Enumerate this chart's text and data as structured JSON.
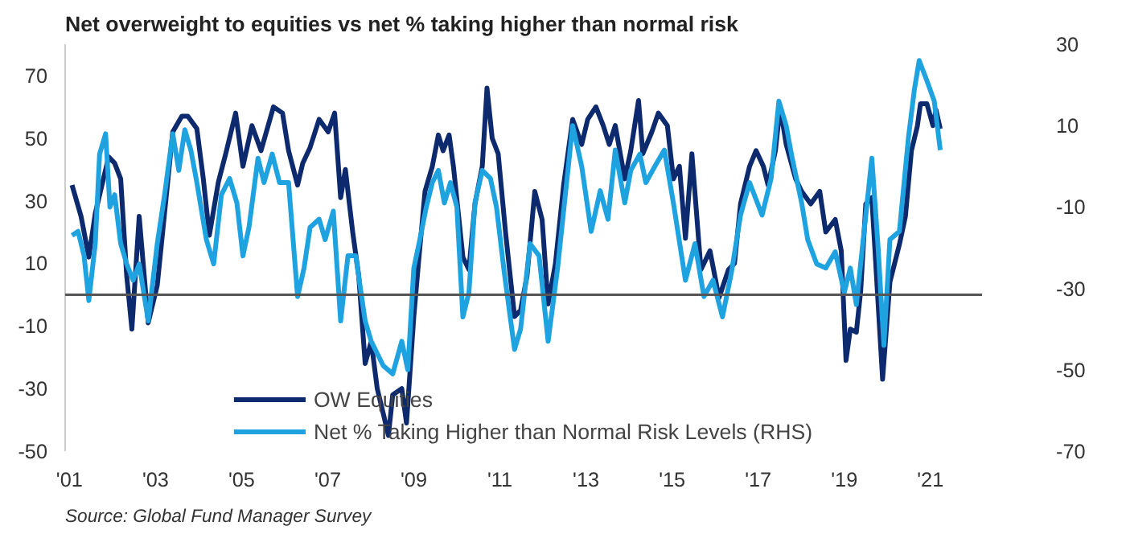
{
  "chart_data": {
    "type": "line",
    "title": "Net overweight to equities vs net % taking higher than normal risk",
    "annotations": [
      "Source: Global Fund Manager Survey"
    ],
    "xlim": [
      2000.9,
      2022.2
    ],
    "xticks": [
      {
        "value": 2001,
        "label": "'01"
      },
      {
        "value": 2003,
        "label": "'03"
      },
      {
        "value": 2005,
        "label": "'05"
      },
      {
        "value": 2007,
        "label": "'07"
      },
      {
        "value": 2009,
        "label": "'09"
      },
      {
        "value": 2011,
        "label": "'11"
      },
      {
        "value": 2013,
        "label": "'13"
      },
      {
        "value": 2015,
        "label": "'15"
      },
      {
        "value": 2017,
        "label": "'17"
      },
      {
        "value": 2019,
        "label": "'19"
      },
      {
        "value": 2021,
        "label": "'21"
      }
    ],
    "ylim": [
      -50,
      80
    ],
    "yticks": [
      -50,
      -30,
      -10,
      10,
      30,
      50,
      70
    ],
    "y2lim": [
      -70,
      30
    ],
    "y2ticks": [
      -70,
      -50,
      -30,
      -10,
      10,
      30
    ],
    "grid": false,
    "legend": "bottom",
    "line_style": "solid",
    "marker": "none",
    "ref_lines": [
      {
        "axis": "y",
        "value": 0,
        "color": "#555555"
      }
    ],
    "series": [
      {
        "name": "OW Equities",
        "color": "#0d2a6e",
        "x": [
          2001.06,
          2001.27,
          2001.45,
          2001.6,
          2001.91,
          2002.05,
          2002.19,
          2002.33,
          2002.45,
          2002.62,
          2002.83,
          2003.04,
          2003.4,
          2003.61,
          2003.75,
          2003.96,
          2004.11,
          2004.25,
          2004.46,
          2004.63,
          2004.86,
          2005.03,
          2005.24,
          2005.45,
          2005.74,
          2005.95,
          2006.09,
          2006.3,
          2006.42,
          2006.59,
          2006.8,
          2007.01,
          2007.16,
          2007.3,
          2007.41,
          2007.58,
          2007.72,
          2007.87,
          2008.01,
          2008.15,
          2008.29,
          2008.41,
          2008.51,
          2008.72,
          2008.83,
          2009.0,
          2009.12,
          2009.26,
          2009.43,
          2009.57,
          2009.68,
          2009.82,
          2009.92,
          2010.14,
          2010.28,
          2010.42,
          2010.59,
          2010.7,
          2010.82,
          2010.96,
          2011.13,
          2011.34,
          2011.48,
          2011.63,
          2011.81,
          2011.98,
          2012.12,
          2012.29,
          2012.48,
          2012.69,
          2012.9,
          2013.04,
          2013.23,
          2013.4,
          2013.54,
          2013.68,
          2013.9,
          2014.04,
          2014.22,
          2014.32,
          2014.53,
          2014.68,
          2014.89,
          2015.03,
          2015.17,
          2015.31,
          2015.46,
          2015.67,
          2015.88,
          2016.09,
          2016.31,
          2016.45,
          2016.59,
          2016.8,
          2016.95,
          2017.12,
          2017.23,
          2017.4,
          2017.51,
          2017.65,
          2017.87,
          2018.01,
          2018.22,
          2018.43,
          2018.57,
          2018.79,
          2018.93,
          2019.04,
          2019.14,
          2019.28,
          2019.38,
          2019.5,
          2019.64,
          2019.89,
          2020.06,
          2020.28,
          2020.42,
          2020.56,
          2020.7,
          2020.77,
          2020.92,
          2021.06,
          2021.13,
          2021.23
        ],
        "values": [
          35,
          25,
          12,
          26,
          44,
          42,
          37,
          6,
          -11,
          25,
          -9,
          3,
          52,
          57,
          57,
          53,
          37,
          19,
          36,
          45,
          58,
          41,
          54,
          46,
          60,
          58,
          46,
          35,
          42,
          47,
          56,
          52,
          58,
          31,
          40,
          20,
          6,
          -22,
          -15,
          -30,
          -38,
          -45,
          -32,
          -30,
          -41,
          -7,
          12,
          33,
          41,
          51,
          46,
          51,
          41,
          12,
          8,
          29,
          41,
          66,
          50,
          45,
          20,
          -7,
          -5,
          6,
          33,
          24,
          -3,
          10,
          35,
          56,
          48,
          56,
          60,
          54,
          48,
          54,
          37,
          46,
          62,
          45,
          52,
          58,
          54,
          37,
          41,
          18,
          45,
          8,
          14,
          -1,
          8,
          10,
          29,
          41,
          46,
          41,
          35,
          46,
          60,
          48,
          37,
          33,
          29,
          33,
          20,
          24,
          14,
          -21,
          -11,
          -12,
          1,
          29,
          31,
          -27,
          4,
          16,
          25,
          46,
          54,
          61,
          61,
          54,
          59,
          53
        ]
      },
      {
        "name": "Net % Taking Higher than Normal Risk Levels (RHS)",
        "color": "#1fa2e0",
        "axis": "y2",
        "x": [
          2001.06,
          2001.2,
          2001.34,
          2001.45,
          2001.6,
          2001.7,
          2001.84,
          2001.94,
          2002.05,
          2002.19,
          2002.33,
          2002.48,
          2002.62,
          2002.83,
          2003.04,
          2003.21,
          2003.4,
          2003.54,
          2003.68,
          2003.82,
          2003.96,
          2004.18,
          2004.35,
          2004.53,
          2004.72,
          2004.89,
          2005.03,
          2005.17,
          2005.38,
          2005.52,
          2005.71,
          2005.88,
          2006.09,
          2006.3,
          2006.45,
          2006.59,
          2006.8,
          2006.94,
          2007.13,
          2007.3,
          2007.47,
          2007.65,
          2007.87,
          2008.01,
          2008.29,
          2008.51,
          2008.72,
          2008.86,
          2009.0,
          2009.14,
          2009.29,
          2009.43,
          2009.57,
          2009.71,
          2009.85,
          2010.0,
          2010.14,
          2010.28,
          2010.42,
          2010.59,
          2010.78,
          2010.92,
          2011.1,
          2011.34,
          2011.48,
          2011.7,
          2011.91,
          2012.12,
          2012.34,
          2012.55,
          2012.69,
          2012.9,
          2013.12,
          2013.33,
          2013.51,
          2013.68,
          2013.9,
          2014.04,
          2014.25,
          2014.39,
          2014.6,
          2014.82,
          2015.03,
          2015.31,
          2015.53,
          2015.74,
          2015.95,
          2016.17,
          2016.38,
          2016.59,
          2016.8,
          2017.09,
          2017.3,
          2017.48,
          2017.65,
          2017.79,
          2018.01,
          2018.15,
          2018.36,
          2018.57,
          2018.79,
          2019.0,
          2019.14,
          2019.28,
          2019.43,
          2019.64,
          2019.78,
          2019.92,
          2020.06,
          2020.28,
          2020.49,
          2020.63,
          2020.74,
          2020.92,
          2021.09,
          2021.23
        ],
        "values": [
          -17,
          -16,
          -22,
          -33,
          -19,
          3,
          8,
          -10,
          -7,
          -19,
          -24,
          -28,
          -24,
          -38,
          -19,
          -7,
          8,
          -1,
          9,
          4,
          -4,
          -18,
          -24,
          -7,
          -3,
          -9,
          -22,
          -15,
          2,
          -4,
          3,
          -4,
          -4,
          -32,
          -25,
          -15,
          -13,
          -18,
          -11,
          -38,
          -22,
          -22,
          -38,
          -43,
          -49,
          -51,
          -43,
          -50,
          -25,
          -18,
          -10,
          -4,
          -1,
          -9,
          -4,
          -10,
          -37,
          -31,
          -9,
          -1,
          -3,
          -10,
          -26,
          -45,
          -40,
          -19,
          -22,
          -43,
          -25,
          -4,
          10,
          0,
          -16,
          -6,
          -13,
          4,
          -9,
          -1,
          3,
          -4,
          0,
          4,
          -9,
          -28,
          -19,
          -32,
          -28,
          -37,
          -26,
          -12,
          -4,
          -12,
          -3,
          16,
          10,
          2,
          -9,
          -18,
          -24,
          -25,
          -21,
          -31,
          -25,
          -34,
          -19,
          2,
          -19,
          -44,
          -18,
          -16,
          7,
          19,
          26,
          21,
          16,
          4
        ]
      }
    ]
  }
}
